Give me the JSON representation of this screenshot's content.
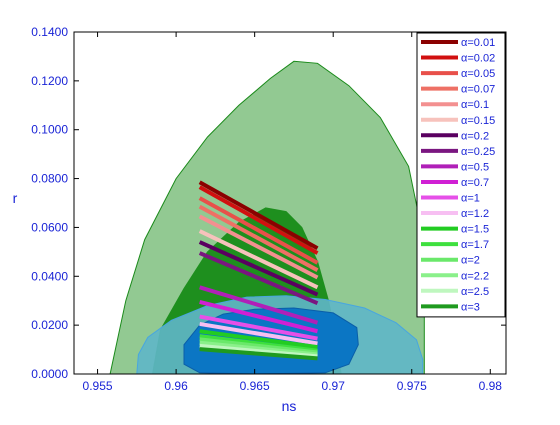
{
  "chart_data": {
    "type": "scatter",
    "title": "",
    "xlabel": "ns",
    "ylabel": "r",
    "xlim": [
      0.9535,
      0.981
    ],
    "ylim": [
      0.0,
      0.14
    ],
    "xticks": [
      0.955,
      0.96,
      0.965,
      0.97,
      0.975,
      0.98
    ],
    "xtick_labels": [
      "0.955",
      "0.96",
      "0.965",
      "0.97",
      "0.975",
      "0.98"
    ],
    "yticks": [
      0.0,
      0.02,
      0.04,
      0.06,
      0.08,
      0.1,
      0.12,
      0.14
    ],
    "ytick_labels": [
      "0.0000",
      "0.0200",
      "0.0400",
      "0.0600",
      "0.0800",
      "0.1000",
      "0.1200",
      "0.1400"
    ],
    "grid": false,
    "legend_position": "top-right",
    "contours": [
      {
        "fill": "#92c992",
        "stroke": "#1a8a1a",
        "opacity": 1,
        "points": [
          [
            0.9558,
            0.0
          ],
          [
            0.9568,
            0.03
          ],
          [
            0.958,
            0.055
          ],
          [
            0.96,
            0.08
          ],
          [
            0.962,
            0.097
          ],
          [
            0.964,
            0.11
          ],
          [
            0.966,
            0.121
          ],
          [
            0.9675,
            0.128
          ],
          [
            0.969,
            0.1272
          ],
          [
            0.971,
            0.118
          ],
          [
            0.973,
            0.105
          ],
          [
            0.9748,
            0.085
          ],
          [
            0.9756,
            0.06
          ],
          [
            0.9758,
            0.03
          ],
          [
            0.9758,
            0.0
          ]
        ]
      },
      {
        "fill": "#1e8f1e",
        "stroke": "#1e8f1e",
        "opacity": 1,
        "points": [
          [
            0.9585,
            0.0
          ],
          [
            0.959,
            0.018
          ],
          [
            0.9605,
            0.035
          ],
          [
            0.962,
            0.05
          ],
          [
            0.964,
            0.062
          ],
          [
            0.9657,
            0.068
          ],
          [
            0.967,
            0.0665
          ],
          [
            0.968,
            0.06
          ],
          [
            0.969,
            0.046
          ],
          [
            0.9697,
            0.03
          ],
          [
            0.9702,
            0.015
          ],
          [
            0.9705,
            0.0
          ]
        ]
      },
      {
        "fill": "#5fb6c8",
        "stroke": "#48a6e0",
        "opacity": 0.9,
        "points": [
          [
            0.9575,
            0.0
          ],
          [
            0.9576,
            0.008
          ],
          [
            0.9582,
            0.015
          ],
          [
            0.9597,
            0.022
          ],
          [
            0.962,
            0.028
          ],
          [
            0.9645,
            0.0315
          ],
          [
            0.967,
            0.032
          ],
          [
            0.9695,
            0.0305
          ],
          [
            0.972,
            0.027
          ],
          [
            0.974,
            0.021
          ],
          [
            0.9753,
            0.014
          ],
          [
            0.9757,
            0.006
          ],
          [
            0.9757,
            0.0
          ]
        ]
      },
      {
        "fill": "#0b76c4",
        "stroke": "#0b5ea8",
        "opacity": 1,
        "points": [
          [
            0.9605,
            0.004
          ],
          [
            0.9605,
            0.012
          ],
          [
            0.9615,
            0.02
          ],
          [
            0.963,
            0.0245
          ],
          [
            0.965,
            0.0265
          ],
          [
            0.9675,
            0.027
          ],
          [
            0.97,
            0.025
          ],
          [
            0.9715,
            0.019
          ],
          [
            0.9716,
            0.012
          ],
          [
            0.971,
            0.004
          ],
          [
            0.9695,
            0.0005
          ],
          [
            0.965,
            0.0
          ],
          [
            0.9615,
            0.0005
          ]
        ]
      }
    ],
    "series": [
      {
        "name": "α=0.01",
        "color": "#8b0000",
        "x": [
          0.9615,
          0.969
        ],
        "y": [
          0.0785,
          0.0515
        ]
      },
      {
        "name": "α=0.02",
        "color": "#d11010",
        "x": [
          0.9615,
          0.969
        ],
        "y": [
          0.0765,
          0.0495
        ]
      },
      {
        "name": "α=0.05",
        "color": "#e8504a",
        "x": [
          0.9615,
          0.969
        ],
        "y": [
          0.072,
          0.0455
        ]
      },
      {
        "name": "α=0.07",
        "color": "#ee7065",
        "x": [
          0.9615,
          0.969
        ],
        "y": [
          0.0685,
          0.0425
        ]
      },
      {
        "name": "α=0.1",
        "color": "#f39090",
        "x": [
          0.9615,
          0.969
        ],
        "y": [
          0.0645,
          0.0395
        ]
      },
      {
        "name": "α=0.15",
        "color": "#f7c2bc",
        "x": [
          0.9615,
          0.969
        ],
        "y": [
          0.0585,
          0.0355
        ]
      },
      {
        "name": "α=0.2",
        "color": "#5a0060",
        "x": [
          0.9615,
          0.969
        ],
        "y": [
          0.054,
          0.0325
        ]
      },
      {
        "name": "α=0.25",
        "color": "#7a1680",
        "x": [
          0.9615,
          0.969
        ],
        "y": [
          0.0495,
          0.029
        ]
      },
      {
        "name": "α=0.5",
        "color": "#b020b8",
        "x": [
          0.9615,
          0.969
        ],
        "y": [
          0.0355,
          0.021
        ]
      },
      {
        "name": "α=0.7",
        "color": "#d020d4",
        "x": [
          0.9615,
          0.969
        ],
        "y": [
          0.0295,
          0.0175
        ]
      },
      {
        "name": "α=1",
        "color": "#e650e8",
        "x": [
          0.9615,
          0.969
        ],
        "y": [
          0.0235,
          0.0145
        ]
      },
      {
        "name": "α=1.2",
        "color": "#f7bff2",
        "x": [
          0.9615,
          0.969
        ],
        "y": [
          0.0205,
          0.0125
        ]
      },
      {
        "name": "α=1.5",
        "color": "#22cc22",
        "x": [
          0.9615,
          0.969
        ],
        "y": [
          0.0175,
          0.011
        ]
      },
      {
        "name": "α=1.7",
        "color": "#3ee03e",
        "x": [
          0.9615,
          0.969
        ],
        "y": [
          0.0155,
          0.0095
        ]
      },
      {
        "name": "α=2",
        "color": "#6ae86a",
        "x": [
          0.9615,
          0.969
        ],
        "y": [
          0.0142,
          0.0088
        ]
      },
      {
        "name": "α=2.2",
        "color": "#8af08a",
        "x": [
          0.9615,
          0.969
        ],
        "y": [
          0.0128,
          0.008
        ]
      },
      {
        "name": "α=2.5",
        "color": "#bff7bf",
        "x": [
          0.9615,
          0.969
        ],
        "y": [
          0.0115,
          0.0072
        ]
      },
      {
        "name": "α=3",
        "color": "#1f9a1f",
        "x": [
          0.9615,
          0.969
        ],
        "y": [
          0.0102,
          0.0064
        ]
      }
    ]
  }
}
